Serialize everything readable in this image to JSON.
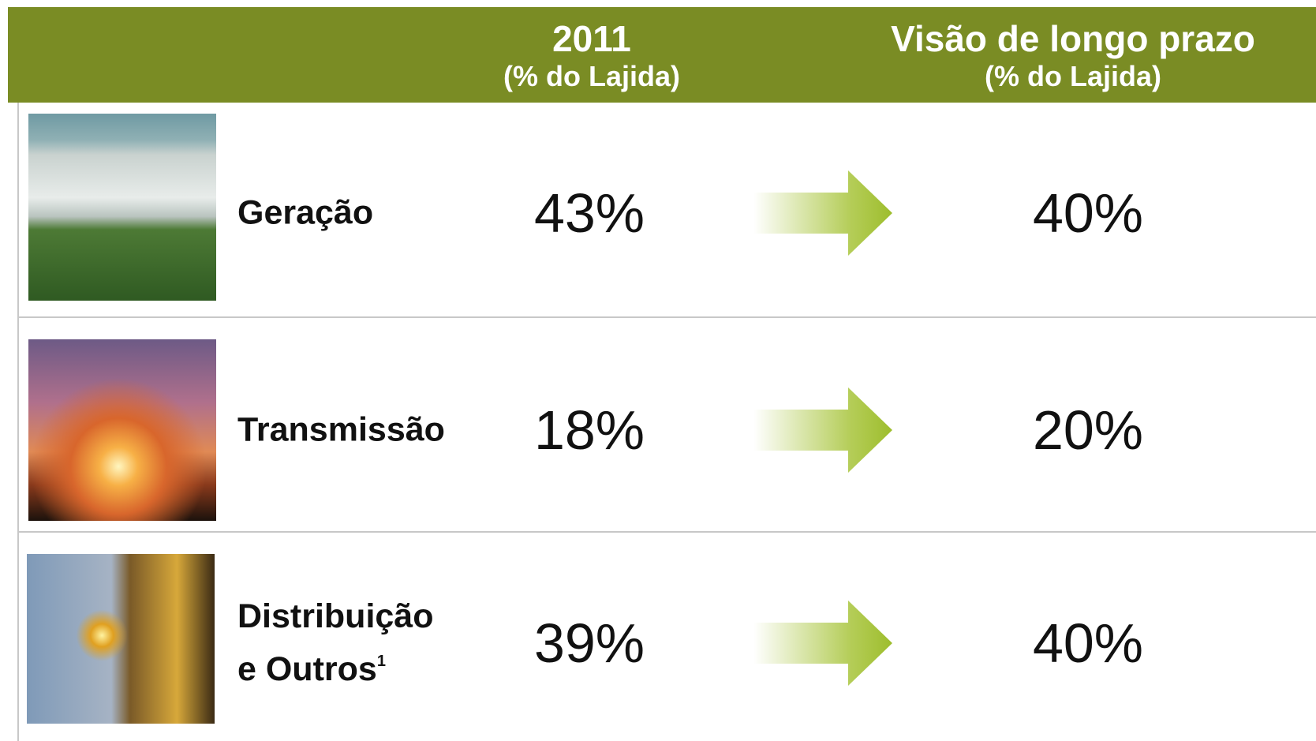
{
  "header": {
    "columns": [
      {
        "title": "2011",
        "subtitle": "(% do Lajida)"
      },
      {
        "title": "Visão de longo prazo",
        "subtitle": "(% do Lajida)"
      }
    ]
  },
  "table": {
    "rows": [
      {
        "label": [
          "Geração"
        ],
        "value_2011": "43%",
        "value_long_term": "40%"
      },
      {
        "label": [
          "Transmissão"
        ],
        "value_2011": "18%",
        "value_long_term": "20%"
      },
      {
        "label": [
          "Distribuição",
          "e Outros"
        ],
        "footnote": "1",
        "value_2011": "39%",
        "value_long_term": "40%"
      }
    ]
  }
}
